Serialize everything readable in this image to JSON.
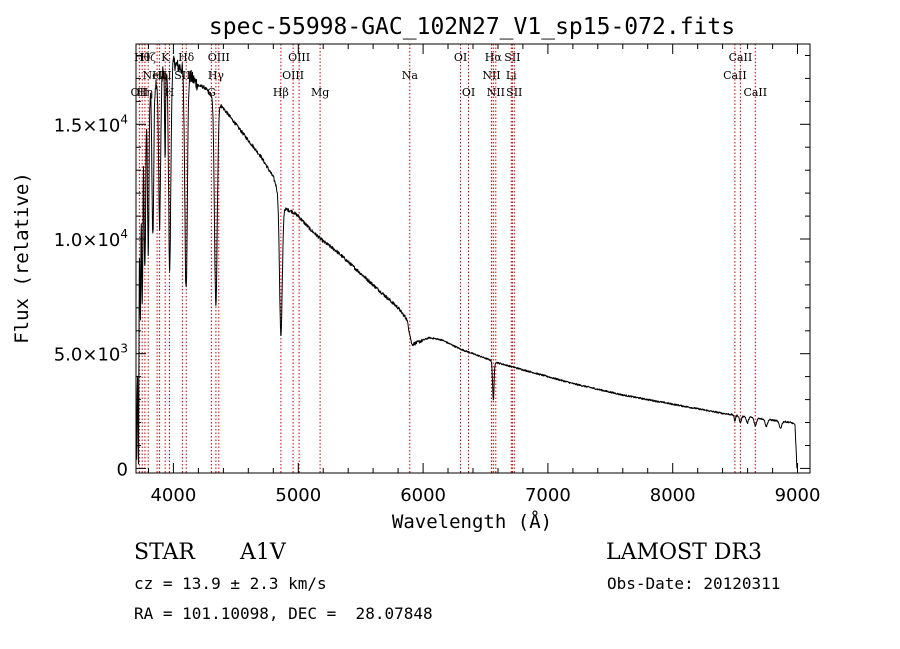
{
  "chart_data": {
    "type": "line",
    "title": "spec-55998-GAC_102N27_V1_sp15-072.fits",
    "xlabel": "Wavelength (Å)",
    "ylabel": "Flux (relative)",
    "xlim": [
      3700,
      9100
    ],
    "ylim": [
      -200,
      18500
    ],
    "x_ticks": [
      4000,
      5000,
      6000,
      7000,
      8000,
      9000
    ],
    "x_tick_labels": [
      "4000",
      "5000",
      "6000",
      "7000",
      "8000",
      "9000"
    ],
    "y_ticks": [
      0,
      5000,
      10000,
      15000
    ],
    "y_tick_labels": [
      {
        "mant": "0",
        "exp": ""
      },
      {
        "mant": "5.0×10",
        "exp": "3"
      },
      {
        "mant": "1.0×10",
        "exp": "4"
      },
      {
        "mant": "1.5×10",
        "exp": "4"
      }
    ],
    "continuum": [
      [
        3705,
        300
      ],
      [
        3712,
        5000
      ],
      [
        3722,
        10500
      ],
      [
        3740,
        14500
      ],
      [
        3770,
        16000
      ],
      [
        3830,
        16600
      ],
      [
        3900,
        17200
      ],
      [
        3960,
        17600
      ],
      [
        4000,
        17700
      ],
      [
        4040,
        17500
      ],
      [
        4100,
        17400
      ],
      [
        4150,
        17000
      ],
      [
        4200,
        16700
      ],
      [
        4250,
        16600
      ],
      [
        4300,
        16300
      ],
      [
        4400,
        15700
      ],
      [
        4500,
        15000
      ],
      [
        4600,
        14300
      ],
      [
        4700,
        13600
      ],
      [
        4800,
        12700
      ],
      [
        4830,
        12200
      ],
      [
        4900,
        11300
      ],
      [
        4950,
        11200
      ],
      [
        5000,
        11000
      ],
      [
        5100,
        10400
      ],
      [
        5200,
        9900
      ],
      [
        5300,
        9500
      ],
      [
        5400,
        9000
      ],
      [
        5500,
        8500
      ],
      [
        5600,
        8000
      ],
      [
        5700,
        7500
      ],
      [
        5800,
        7000
      ],
      [
        5870,
        6500
      ],
      [
        5910,
        5400
      ],
      [
        5960,
        5500
      ],
      [
        6050,
        5700
      ],
      [
        6150,
        5600
      ],
      [
        6300,
        5200
      ],
      [
        6400,
        5000
      ],
      [
        6500,
        4800
      ],
      [
        6600,
        4600
      ],
      [
        6800,
        4300
      ],
      [
        7000,
        4000
      ],
      [
        7200,
        3700
      ],
      [
        7400,
        3450
      ],
      [
        7600,
        3200
      ],
      [
        7800,
        3000
      ],
      [
        8000,
        2800
      ],
      [
        8200,
        2600
      ],
      [
        8400,
        2400
      ],
      [
        8600,
        2250
      ],
      [
        8800,
        2100
      ],
      [
        8950,
        2000
      ],
      [
        8980,
        1900
      ],
      [
        8995,
        0
      ]
    ],
    "absorption": [
      {
        "center": 3720,
        "depth": 9000,
        "width": 4
      },
      {
        "center": 3735,
        "depth": 7000,
        "width": 4
      },
      {
        "center": 3750,
        "depth": 8000,
        "width": 5
      },
      {
        "center": 3771,
        "depth": 7500,
        "width": 6
      },
      {
        "center": 3798,
        "depth": 7000,
        "width": 6
      },
      {
        "center": 3835,
        "depth": 6500,
        "width": 7
      },
      {
        "center": 3889,
        "depth": 6500,
        "width": 8
      },
      {
        "center": 3933,
        "depth": 4000,
        "width": 4
      },
      {
        "center": 3970,
        "depth": 9000,
        "width": 9
      },
      {
        "center": 4101,
        "depth": 9500,
        "width": 10
      },
      {
        "center": 4340,
        "depth": 9000,
        "width": 11
      },
      {
        "center": 4861,
        "depth": 6000,
        "width": 11
      },
      {
        "center": 6563,
        "depth": 1700,
        "width": 6
      },
      {
        "center": 8498,
        "depth": 250,
        "width": 6
      },
      {
        "center": 8542,
        "depth": 300,
        "width": 8
      },
      {
        "center": 8598,
        "depth": 280,
        "width": 8
      },
      {
        "center": 8662,
        "depth": 350,
        "width": 9
      },
      {
        "center": 8750,
        "depth": 300,
        "width": 9
      },
      {
        "center": 8863,
        "depth": 300,
        "width": 10
      }
    ],
    "line_markers": [
      {
        "x": 3727,
        "label": "OII",
        "row": 2
      },
      {
        "x": 3750,
        "label": "Hθ",
        "row": 0
      },
      {
        "x": 3771,
        "label": "Hη",
        "row": 2
      },
      {
        "x": 3798,
        "label": "Hζ",
        "row": 0
      },
      {
        "x": 3869,
        "label": "NeIII",
        "row": 1
      },
      {
        "x": 3889,
        "label": "Hε",
        "row": 1
      },
      {
        "x": 3934,
        "label": "K",
        "row": 0
      },
      {
        "x": 3968,
        "label": "H",
        "row": 2
      },
      {
        "x": 4072,
        "label": "SII",
        "row": 1
      },
      {
        "x": 4102,
        "label": "Hδ",
        "row": 0
      },
      {
        "x": 4304,
        "label": "G",
        "row": 2
      },
      {
        "x": 4340,
        "label": "Hγ",
        "row": 1
      },
      {
        "x": 4363,
        "label": "OIII",
        "row": 0
      },
      {
        "x": 4861,
        "label": "Hβ",
        "row": 2
      },
      {
        "x": 4959,
        "label": "OIII",
        "row": 1
      },
      {
        "x": 5007,
        "label": "OIII",
        "row": 0
      },
      {
        "x": 5175,
        "label": "Mg",
        "row": 2
      },
      {
        "x": 5894,
        "label": "Na",
        "row": 1
      },
      {
        "x": 6300,
        "label": "OI",
        "row": 0
      },
      {
        "x": 6364,
        "label": "OI",
        "row": 2
      },
      {
        "x": 6548,
        "label": "NII",
        "row": 1
      },
      {
        "x": 6563,
        "label": "Hα",
        "row": 0
      },
      {
        "x": 6583,
        "label": "NII",
        "row": 2
      },
      {
        "x": 6707,
        "label": "Li",
        "row": 1
      },
      {
        "x": 6716,
        "label": "SII",
        "row": 0
      },
      {
        "x": 6731,
        "label": "SII",
        "row": 2
      },
      {
        "x": 8498,
        "label": "CaII",
        "row": 1
      },
      {
        "x": 8542,
        "label": "CaII",
        "row": 0
      },
      {
        "x": 8662,
        "label": "CaII",
        "row": 2
      }
    ]
  },
  "info": {
    "star_label": "STAR",
    "spectral_type": "A1V",
    "survey": "LAMOST DR3",
    "redshift": "cz = 13.9 ± 2.3 km/s",
    "obs_date": "Obs-Date: 20120311",
    "coords": "RA = 101.10098, DEC =  28.07848"
  }
}
